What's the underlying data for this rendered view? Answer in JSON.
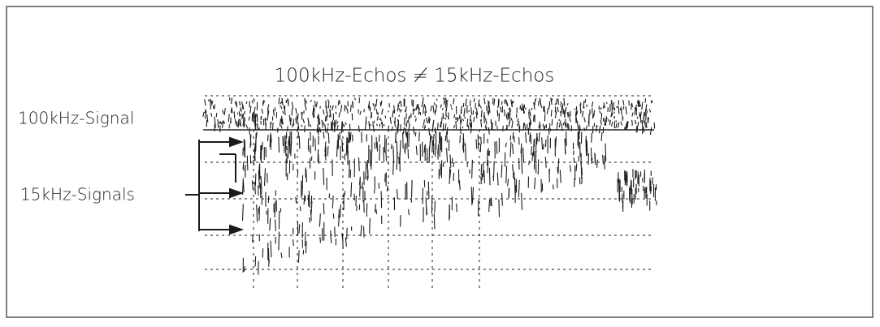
{
  "figure": {
    "title": "100kHz-Echos ≠ 15kHz-Echos",
    "labels": [
      "100kHz-Signal",
      "15kHz-Signals"
    ]
  }
}
